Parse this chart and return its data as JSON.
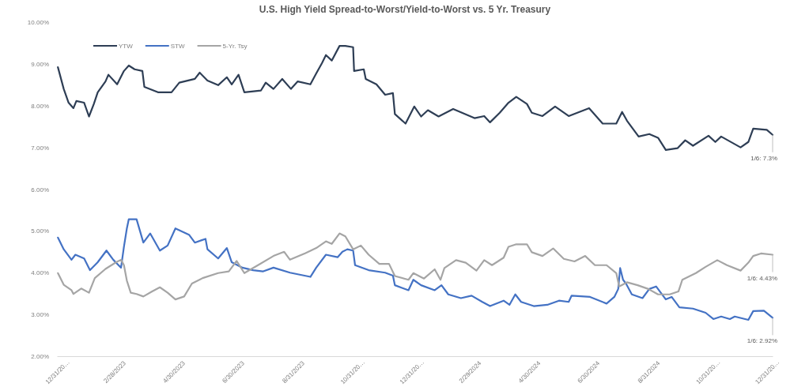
{
  "chart_data": {
    "type": "line",
    "title": "U.S. High Yield Spread-to-Worst/Yield-to-Worst vs. 5 Yr. Treasury",
    "xlim": [
      "2022-12-31",
      "2025-01-06"
    ],
    "xticks": [
      {
        "value": "2022-12-31",
        "label": "12/31/20…"
      },
      {
        "value": "2023-02-28",
        "label": "2/28/2023"
      },
      {
        "value": "2023-04-30",
        "label": "4/30/2023"
      },
      {
        "value": "2023-06-30",
        "label": "6/30/2023"
      },
      {
        "value": "2023-08-31",
        "label": "8/31/2023"
      },
      {
        "value": "2023-10-31",
        "label": "10/31/20…"
      },
      {
        "value": "2023-12-31",
        "label": "12/31/20…"
      },
      {
        "value": "2024-02-29",
        "label": "2/29/2024"
      },
      {
        "value": "2024-04-30",
        "label": "4/30/2024"
      },
      {
        "value": "2024-06-30",
        "label": "6/30/2024"
      },
      {
        "value": "2024-08-31",
        "label": "8/31/2024"
      },
      {
        "value": "2024-10-31",
        "label": "10/31/20…"
      },
      {
        "value": "2024-12-31",
        "label": "12/31/20…"
      }
    ],
    "ylim": [
      2,
      10
    ],
    "yticks": [
      {
        "value": 2,
        "label": "2.00%"
      },
      {
        "value": 3,
        "label": "3.00%"
      },
      {
        "value": 4,
        "label": "4.00%"
      },
      {
        "value": 5,
        "label": "5.00%"
      },
      {
        "value": 6,
        "label": "6.00%"
      },
      {
        "value": 7,
        "label": "7.00%"
      },
      {
        "value": 8,
        "label": "8.00%"
      },
      {
        "value": 9,
        "label": "9.00%"
      },
      {
        "value": 10,
        "label": "10.00%"
      }
    ],
    "grid": false,
    "legend": "top left",
    "marker": "none",
    "line_style": "solid",
    "series": [
      {
        "name": "YTW",
        "color": "#2e3e55",
        "x": [
          "2023-01-01",
          "2023-01-07",
          "2023-01-12",
          "2023-01-17",
          "2023-01-20",
          "2023-01-28",
          "2023-02-02",
          "2023-02-07",
          "2023-02-11",
          "2023-02-19",
          "2023-02-22",
          "2023-03-03",
          "2023-03-10",
          "2023-03-15",
          "2023-03-21",
          "2023-03-29",
          "2023-03-31",
          "2023-04-14",
          "2023-04-28",
          "2023-05-06",
          "2023-05-22",
          "2023-05-27",
          "2023-06-04",
          "2023-06-15",
          "2023-06-24",
          "2023-06-29",
          "2023-07-06",
          "2023-07-12",
          "2023-07-29",
          "2023-08-03",
          "2023-08-11",
          "2023-08-20",
          "2023-08-29",
          "2023-09-05",
          "2023-09-18",
          "2023-09-24",
          "2023-09-30",
          "2023-10-04",
          "2023-10-10",
          "2023-10-18",
          "2023-10-24",
          "2023-11-01",
          "2023-11-02",
          "2023-11-12",
          "2023-11-14",
          "2023-11-25",
          "2023-12-04",
          "2023-12-12",
          "2023-12-14",
          "2023-12-25",
          "2024-01-03",
          "2024-01-10",
          "2024-01-17",
          "2024-01-28",
          "2024-02-12",
          "2024-03-05",
          "2024-03-15",
          "2024-03-21",
          "2024-03-31",
          "2024-04-09",
          "2024-04-17",
          "2024-04-28",
          "2024-05-03",
          "2024-05-14",
          "2024-05-27",
          "2024-06-10",
          "2024-07-01",
          "2024-07-15",
          "2024-07-29",
          "2024-08-04",
          "2024-08-09",
          "2024-08-21",
          "2024-09-01",
          "2024-09-10",
          "2024-09-18",
          "2024-09-30",
          "2024-10-08",
          "2024-10-16",
          "2024-11-01",
          "2024-11-08",
          "2024-11-14",
          "2024-12-04",
          "2024-12-12",
          "2024-12-17",
          "2024-12-31",
          "2025-01-06"
        ],
        "values": [
          8.92,
          8.4,
          8.07,
          7.94,
          8.11,
          8.07,
          7.74,
          8.04,
          8.32,
          8.58,
          8.74,
          8.51,
          8.83,
          8.96,
          8.87,
          8.83,
          8.45,
          8.32,
          8.32,
          8.55,
          8.64,
          8.79,
          8.6,
          8.49,
          8.68,
          8.51,
          8.74,
          8.32,
          8.36,
          8.55,
          8.4,
          8.64,
          8.4,
          8.58,
          8.51,
          8.77,
          9.02,
          9.21,
          9.08,
          9.43,
          9.43,
          9.4,
          8.83,
          8.87,
          8.64,
          8.51,
          8.26,
          8.3,
          7.8,
          7.57,
          7.98,
          7.74,
          7.89,
          7.74,
          7.92,
          7.7,
          7.75,
          7.6,
          7.83,
          8.07,
          8.21,
          8.04,
          7.83,
          7.75,
          7.98,
          7.75,
          7.94,
          7.57,
          7.57,
          7.85,
          7.64,
          7.26,
          7.32,
          7.23,
          6.94,
          6.98,
          7.17,
          7.04,
          7.28,
          7.13,
          7.26,
          7.0,
          7.13,
          7.45,
          7.42,
          7.3
        ]
      },
      {
        "name": "STW",
        "color": "#4472c4",
        "x": [
          "2023-01-01",
          "2023-01-07",
          "2023-01-15",
          "2023-01-19",
          "2023-01-28",
          "2023-02-03",
          "2023-02-11",
          "2023-02-20",
          "2023-02-27",
          "2023-03-07",
          "2023-03-10",
          "2023-03-13",
          "2023-03-15",
          "2023-03-23",
          "2023-03-30",
          "2023-04-06",
          "2023-04-16",
          "2023-04-24",
          "2023-05-02",
          "2023-05-16",
          "2023-05-22",
          "2023-06-02",
          "2023-06-04",
          "2023-06-15",
          "2023-06-24",
          "2023-06-29",
          "2023-07-10",
          "2023-07-21",
          "2023-07-31",
          "2023-08-11",
          "2023-08-28",
          "2023-09-18",
          "2023-09-24",
          "2023-10-04",
          "2023-10-16",
          "2023-10-21",
          "2023-10-26",
          "2023-11-01",
          "2023-11-03",
          "2023-11-17",
          "2023-12-04",
          "2023-12-12",
          "2023-12-14",
          "2023-12-28",
          "2024-01-02",
          "2024-01-10",
          "2024-01-24",
          "2024-01-31",
          "2024-02-07",
          "2024-02-20",
          "2024-03-02",
          "2024-03-13",
          "2024-03-21",
          "2024-04-04",
          "2024-04-10",
          "2024-04-16",
          "2024-04-22",
          "2024-05-05",
          "2024-05-19",
          "2024-05-31",
          "2024-06-10",
          "2024-06-13",
          "2024-07-02",
          "2024-07-19",
          "2024-07-27",
          "2024-07-31",
          "2024-08-02",
          "2024-08-05",
          "2024-08-08",
          "2024-08-14",
          "2024-08-25",
          "2024-09-01",
          "2024-09-08",
          "2024-09-18",
          "2024-09-24",
          "2024-10-02",
          "2024-10-16",
          "2024-10-29",
          "2024-11-06",
          "2024-11-14",
          "2024-11-23",
          "2024-11-28",
          "2024-12-12",
          "2024-12-17",
          "2024-12-28",
          "2025-01-06"
        ],
        "values": [
          4.84,
          4.56,
          4.31,
          4.43,
          4.34,
          4.06,
          4.25,
          4.53,
          4.31,
          4.12,
          4.62,
          5.06,
          5.28,
          5.28,
          4.72,
          4.94,
          4.53,
          4.65,
          5.06,
          4.91,
          4.72,
          4.81,
          4.56,
          4.34,
          4.59,
          4.25,
          4.12,
          4.06,
          4.03,
          4.12,
          4.0,
          3.9,
          4.12,
          4.43,
          4.37,
          4.5,
          4.56,
          4.53,
          4.18,
          4.06,
          4.0,
          3.93,
          3.7,
          3.58,
          3.83,
          3.7,
          3.58,
          3.7,
          3.48,
          3.39,
          3.45,
          3.3,
          3.2,
          3.33,
          3.23,
          3.48,
          3.3,
          3.2,
          3.23,
          3.33,
          3.3,
          3.45,
          3.42,
          3.26,
          3.42,
          3.61,
          4.11,
          3.83,
          3.74,
          3.48,
          3.39,
          3.61,
          3.67,
          3.36,
          3.42,
          3.17,
          3.14,
          3.04,
          2.89,
          2.95,
          2.89,
          2.95,
          2.87,
          3.08,
          3.09,
          2.92
        ]
      },
      {
        "name": "5-Yr. Tsy",
        "color": "#a5a5a5",
        "x": [
          "2023-01-01",
          "2023-01-07",
          "2023-01-15",
          "2023-01-17",
          "2023-01-25",
          "2023-02-02",
          "2023-02-08",
          "2023-02-19",
          "2023-03-02",
          "2023-03-07",
          "2023-03-10",
          "2023-03-13",
          "2023-03-17",
          "2023-03-23",
          "2023-03-30",
          "2023-04-08",
          "2023-04-16",
          "2023-04-24",
          "2023-05-02",
          "2023-05-11",
          "2023-05-19",
          "2023-05-30",
          "2023-06-15",
          "2023-06-26",
          "2023-07-04",
          "2023-07-12",
          "2023-07-26",
          "2023-08-11",
          "2023-08-22",
          "2023-08-28",
          "2023-09-13",
          "2023-09-24",
          "2023-10-04",
          "2023-10-10",
          "2023-10-18",
          "2023-10-24",
          "2023-11-01",
          "2023-11-09",
          "2023-11-17",
          "2023-11-28",
          "2023-12-08",
          "2023-12-14",
          "2023-12-28",
          "2024-01-02",
          "2024-01-13",
          "2024-01-24",
          "2024-01-30",
          "2024-02-03",
          "2024-02-15",
          "2024-02-25",
          "2024-03-07",
          "2024-03-15",
          "2024-03-23",
          "2024-04-04",
          "2024-04-09",
          "2024-04-17",
          "2024-04-28",
          "2024-05-03",
          "2024-05-14",
          "2024-05-25",
          "2024-06-05",
          "2024-06-16",
          "2024-06-27",
          "2024-07-07",
          "2024-07-19",
          "2024-07-29",
          "2024-08-01",
          "2024-08-09",
          "2024-08-20",
          "2024-08-31",
          "2024-09-10",
          "2024-09-22",
          "2024-10-01",
          "2024-10-05",
          "2024-10-19",
          "2024-10-29",
          "2024-11-10",
          "2024-11-20",
          "2024-12-04",
          "2024-12-12",
          "2024-12-17",
          "2024-12-25",
          "2025-01-06"
        ],
        "values": [
          3.99,
          3.71,
          3.58,
          3.49,
          3.62,
          3.52,
          3.87,
          4.09,
          4.25,
          4.31,
          4.18,
          3.81,
          3.52,
          3.49,
          3.43,
          3.55,
          3.65,
          3.52,
          3.36,
          3.43,
          3.74,
          3.87,
          3.99,
          4.03,
          4.28,
          3.99,
          4.18,
          4.4,
          4.5,
          4.31,
          4.47,
          4.59,
          4.75,
          4.69,
          4.94,
          4.87,
          4.56,
          4.65,
          4.43,
          4.21,
          4.21,
          3.92,
          3.83,
          3.99,
          3.86,
          4.08,
          3.83,
          4.11,
          4.3,
          4.24,
          4.05,
          4.3,
          4.18,
          4.36,
          4.62,
          4.68,
          4.68,
          4.49,
          4.4,
          4.58,
          4.33,
          4.27,
          4.4,
          4.18,
          4.18,
          3.99,
          3.67,
          3.77,
          3.7,
          3.61,
          3.48,
          3.48,
          3.55,
          3.83,
          3.99,
          4.14,
          4.3,
          4.18,
          4.05,
          4.24,
          4.4,
          4.46,
          4.43
        ]
      }
    ],
    "annotations": [
      {
        "text": "1/6: 7.3%",
        "x": "2025-01-06",
        "y": 7.3
      },
      {
        "text": "1/6: 4.43%",
        "x": "2025-01-06",
        "y": 4.43
      },
      {
        "text": "1/6: 2.92%",
        "x": "2025-01-06",
        "y": 2.92
      }
    ]
  }
}
